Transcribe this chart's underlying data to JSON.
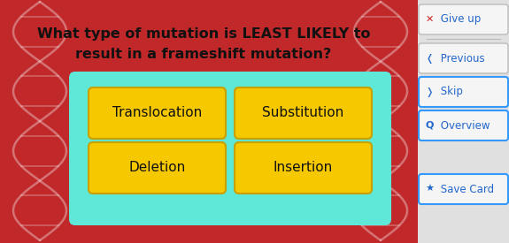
{
  "bg_color": "#c0282a",
  "question_line1": "What type of mutation is LEAST LIKELY to",
  "question_line2": "result in a frameshift mutation?",
  "question_color": "#111111",
  "question_fontsize": 11.5,
  "answers": [
    "Translocation",
    "Substitution",
    "Deletion",
    "Insertion"
  ],
  "answer_bg": "#f5c800",
  "answer_border_color": "#c8a000",
  "answer_text_color": "#111111",
  "answer_fontsize": 11,
  "panel_bg": "#5de8d8",
  "panel_border": "#5de8d8",
  "sidebar_bg": "#e0e0e0",
  "sidebar_button_bg": "#f5f5f5",
  "sidebar_button_border": "#bbbbbb",
  "sidebar_items": [
    {
      "icon": "✕",
      "label": " Give up",
      "icon_color": "#cc2222",
      "border": "#bbbbbb"
    },
    {
      "icon": "❬",
      "label": " Previous",
      "icon_color": "#2266cc",
      "border": "#bbbbbb"
    },
    {
      "icon": "❭",
      "label": " Skip",
      "icon_color": "#2266cc",
      "border": "#3399ff"
    },
    {
      "icon": "Q",
      "label": " Overview",
      "icon_color": "#2266cc",
      "border": "#3399ff"
    },
    {
      "icon": "★",
      "label": " Save Card",
      "icon_color": "#2266cc",
      "border": "#3399ff"
    }
  ],
  "sidebar_text_color": "#2266cc",
  "sidebar_fontsize": 8.5,
  "dna_color": "#ffffff",
  "dna_alpha": 0.35
}
